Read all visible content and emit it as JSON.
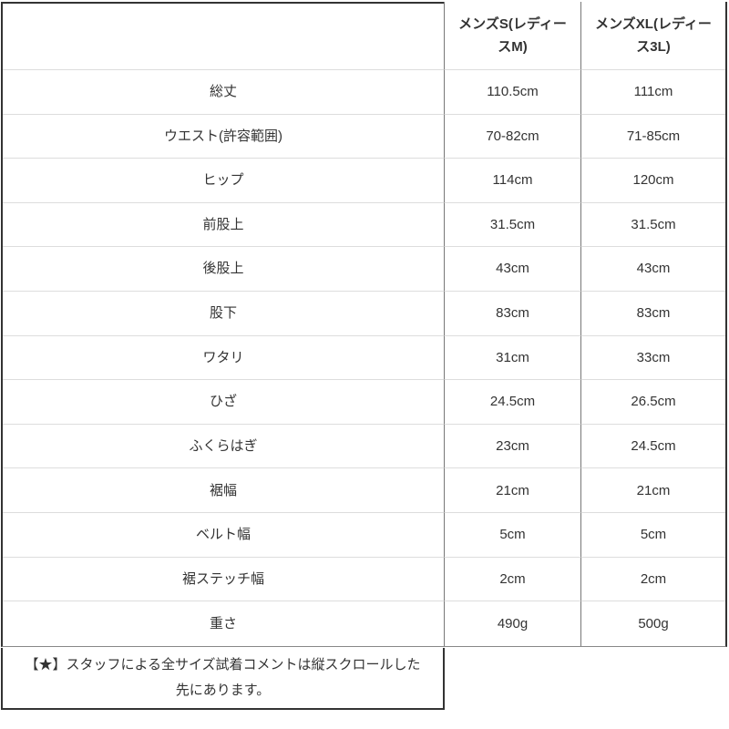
{
  "colors": {
    "text": "#333333",
    "outer_border": "#333333",
    "column_divider": "#777777",
    "row_line": "#dddddd",
    "table_bottom_line": "#888888",
    "background": "#ffffff"
  },
  "table": {
    "columns": [
      "",
      "メンズS(レディースM)",
      "メンズXL(レディース3L)"
    ],
    "rows": [
      {
        "label": "総丈",
        "size_s": "110.5cm",
        "size_xl": "111cm"
      },
      {
        "label": "ウエスト(許容範囲)",
        "size_s": "70-82cm",
        "size_xl": "71-85cm"
      },
      {
        "label": "ヒップ",
        "size_s": "114cm",
        "size_xl": "120cm"
      },
      {
        "label": "前股上",
        "size_s": "31.5cm",
        "size_xl": "31.5cm"
      },
      {
        "label": "後股上",
        "size_s": "43cm",
        "size_xl": "43cm"
      },
      {
        "label": "股下",
        "size_s": "83cm",
        "size_xl": "83cm"
      },
      {
        "label": "ワタリ",
        "size_s": "31cm",
        "size_xl": "33cm"
      },
      {
        "label": "ひざ",
        "size_s": "24.5cm",
        "size_xl": "26.5cm"
      },
      {
        "label": "ふくらはぎ",
        "size_s": "23cm",
        "size_xl": "24.5cm"
      },
      {
        "label": "裾幅",
        "size_s": "21cm",
        "size_xl": "21cm"
      },
      {
        "label": "ベルト幅",
        "size_s": "5cm",
        "size_xl": "5cm"
      },
      {
        "label": "裾ステッチ幅",
        "size_s": "2cm",
        "size_xl": "2cm"
      },
      {
        "label": "重さ",
        "size_s": "490g",
        "size_xl": "500g"
      }
    ]
  },
  "footer": {
    "note": "【★】スタッフによる全サイズ試着コメントは縦スクロールした先にあります。"
  }
}
